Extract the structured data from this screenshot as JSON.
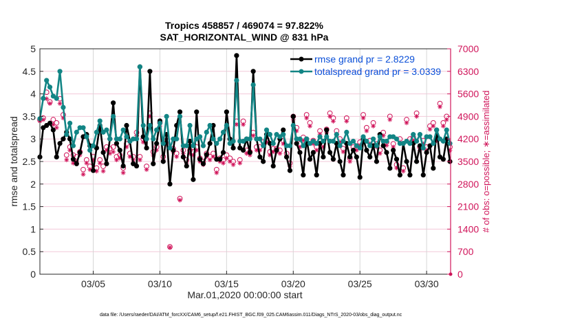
{
  "chart_data": {
    "type": "line",
    "title": "Tropics 458857 / 469074 = 97.822%",
    "subtitle": "SAT_HORIZONTAL_WIND @ 831 hPa",
    "xlabel": "Mar.01,2020 00:00:00 start",
    "ylabel": "rmse and totalspread",
    "ylabel_right": "# of obs: o=possible; ∗=assimilated",
    "footnote": "data file: /Users/raeder/DAI/ATM_forcXX/CAM6_setup/f.e21.FHIST_BGC.f09_025.CAM6assim.011/Diags_NTrS_2020-03/obs_diag_output.nc",
    "x_start_day": 1,
    "x_step_days": 0.25,
    "xlim_days": [
      1,
      31.8
    ],
    "x_ticks": [
      {
        "day": 5,
        "label": "03/05"
      },
      {
        "day": 10,
        "label": "03/10"
      },
      {
        "day": 15,
        "label": "03/15"
      },
      {
        "day": 20,
        "label": "03/20"
      },
      {
        "day": 25,
        "label": "03/25"
      },
      {
        "day": 30,
        "label": "03/30"
      }
    ],
    "ylim": [
      0,
      5
    ],
    "y_ticks": [
      "0",
      "0.5",
      "1",
      "1.5",
      "2",
      "2.5",
      "3",
      "3.5",
      "4",
      "4.5",
      "5"
    ],
    "ylim_right": [
      0,
      7000
    ],
    "y_ticks_right": [
      "0",
      "700",
      "1400",
      "2100",
      "2800",
      "3500",
      "4200",
      "4900",
      "5600",
      "6300",
      "7000"
    ],
    "grid": true,
    "legend_position": "top-right",
    "colors": {
      "rmse": "#000000",
      "totalspread": "#128585",
      "obs": "#d0145a",
      "legend_text": "#0a4fd8",
      "grid_h": "#f2c8d8",
      "grid_v": "#d6d6d6"
    },
    "series": [
      {
        "name": "rmse grand pr = 2.8229",
        "key": "rmse",
        "axis": "left",
        "values": [
          2.6,
          3.25,
          3.3,
          3.35,
          3.2,
          2.6,
          2.9,
          3.0,
          3.15,
          3.0,
          2.55,
          2.45,
          2.7,
          3.05,
          3.1,
          2.85,
          2.3,
          2.8,
          3.3,
          2.7,
          2.45,
          3.0,
          3.8,
          2.9,
          2.75,
          2.4,
          3.3,
          2.95,
          2.45,
          2.4,
          4.6,
          3.05,
          2.8,
          4.5,
          2.45,
          2.9,
          3.4,
          2.5,
          3.1,
          2.0,
          2.75,
          3.3,
          3.6,
          2.6,
          2.4,
          2.95,
          2.1,
          3.6,
          2.55,
          2.45,
          2.65,
          2.9,
          3.3,
          2.55,
          2.55,
          2.7,
          3.6,
          3.0,
          2.8,
          4.85,
          2.8,
          2.75,
          3.0,
          2.7,
          4.5,
          3.0,
          2.6,
          2.5,
          3.1,
          2.9,
          2.4,
          2.75,
          3.0,
          3.2,
          2.6,
          2.3,
          3.5,
          2.9,
          2.7,
          2.2,
          3.0,
          2.55,
          2.7,
          2.2,
          2.9,
          2.6,
          3.2,
          2.7,
          2.55,
          2.9,
          2.5,
          2.2,
          2.9,
          2.6,
          2.75,
          2.6,
          2.15,
          3.0,
          2.75,
          2.6,
          2.85,
          2.5,
          3.1,
          2.85,
          2.7,
          2.35,
          2.75,
          2.55,
          2.2,
          2.9,
          2.5,
          2.2,
          2.9,
          2.5,
          2.85,
          2.2,
          2.7,
          2.85,
          2.35,
          3.2,
          2.6,
          2.55,
          3.0,
          2.5
        ]
      },
      {
        "name": "totalspread grand pr = 3.0339",
        "key": "totalspread",
        "axis": "left",
        "values": [
          3.45,
          3.9,
          4.3,
          4.15,
          3.95,
          3.9,
          4.5,
          3.7,
          3.1,
          3.35,
          2.85,
          3.15,
          3.25,
          3.25,
          3.05,
          2.75,
          2.85,
          3.15,
          3.4,
          3.15,
          3.2,
          3.0,
          3.5,
          3.0,
          3.0,
          3.2,
          3.05,
          2.95,
          3.0,
          3.0,
          4.6,
          3.3,
          3.0,
          3.3,
          3.0,
          3.2,
          3.35,
          2.9,
          3.5,
          2.8,
          3.0,
          3.0,
          3.5,
          2.85,
          2.85,
          3.3,
          2.85,
          3.0,
          3.05,
          2.85,
          3.15,
          3.3,
          3.0,
          2.9,
          3.0,
          3.15,
          3.3,
          2.9,
          2.95,
          4.3,
          2.95,
          2.95,
          3.0,
          3.0,
          4.2,
          3.0,
          3.0,
          2.85,
          3.2,
          3.1,
          2.9,
          3.1,
          3.05,
          3.1,
          2.85,
          2.85,
          3.3,
          3.0,
          3.0,
          2.85,
          3.0,
          2.9,
          2.95,
          2.9,
          3.05,
          2.95,
          3.05,
          2.95,
          2.95,
          3.1,
          2.85,
          2.95,
          3.15,
          2.9,
          2.95,
          2.85,
          2.8,
          3.05,
          2.95,
          2.85,
          3.0,
          2.85,
          3.05,
          2.95,
          2.95,
          3.05,
          3.05,
          3.0,
          2.9,
          2.9,
          2.95,
          2.9,
          3.1,
          2.95,
          3.1,
          2.8,
          3.05,
          3.05,
          2.9,
          3.2,
          3.0,
          2.95,
          3.2,
          2.9
        ]
      },
      {
        "name": "obs possible",
        "key": "obs_possible",
        "axis": "right",
        "marker": "o",
        "values": [
          4800,
          4850,
          5650,
          5350,
          4800,
          4700,
          5450,
          4950,
          3700,
          3950,
          3700,
          3650,
          3800,
          3250,
          3550,
          3350,
          3650,
          3300,
          3550,
          3350,
          3950,
          3900,
          3950,
          3650,
          3700,
          3300,
          4050,
          3750,
          3650,
          4400,
          3650,
          4200,
          3350,
          5000,
          3800,
          3950,
          4700,
          3650,
          4150,
          850,
          3900,
          3750,
          2350,
          3850,
          3550,
          3850,
          3800,
          3950,
          3600,
          3500,
          3750,
          3650,
          3750,
          3250,
          3600,
          3550,
          3700,
          3600,
          3500,
          4750,
          3550,
          4750,
          3850,
          3800,
          4400,
          3950,
          3950,
          4100,
          4200,
          3800,
          3900,
          3900,
          3850,
          4150,
          3750,
          3450,
          4900,
          4550,
          4050,
          4250,
          4950,
          4700,
          4150,
          3950,
          4450,
          4050,
          4500,
          5000,
          4850,
          4450,
          4200,
          3900,
          4850,
          3600,
          3950,
          3950,
          4100,
          4950,
          4550,
          4150,
          4700,
          4050,
          3850,
          4400,
          4100,
          4900,
          4050,
          3400,
          4200,
          3300,
          4800,
          4200,
          4250,
          5000,
          3950,
          4150,
          3950,
          4600,
          4700,
          4250,
          5300,
          4700,
          4900,
          3950
        ]
      },
      {
        "name": "obs assimilated",
        "key": "obs_assimilated",
        "axis": "right",
        "marker": "*",
        "values": [
          4750,
          4800,
          5450,
          5300,
          4650,
          4550,
          5300,
          4850,
          3550,
          3850,
          3450,
          3500,
          3700,
          3100,
          3450,
          3250,
          3550,
          3200,
          3450,
          3200,
          3850,
          3750,
          3800,
          3550,
          3600,
          3150,
          3950,
          3650,
          3550,
          4300,
          3550,
          4100,
          3250,
          4900,
          3700,
          3850,
          4600,
          3550,
          4050,
          830,
          3800,
          3650,
          2300,
          3750,
          3450,
          3750,
          3700,
          3850,
          3500,
          3400,
          3650,
          3550,
          3650,
          3150,
          3500,
          3450,
          3600,
          3500,
          3400,
          4650,
          3450,
          4650,
          3750,
          3700,
          4300,
          3850,
          3850,
          4000,
          4100,
          3700,
          3800,
          3800,
          3750,
          4050,
          3650,
          3350,
          4800,
          4450,
          3950,
          4150,
          4850,
          4600,
          4050,
          3850,
          4350,
          3950,
          4400,
          4900,
          4750,
          4350,
          4100,
          3800,
          4750,
          3500,
          3850,
          3850,
          4000,
          4850,
          4450,
          4050,
          4600,
          3950,
          3750,
          4300,
          4000,
          4800,
          3950,
          3300,
          4100,
          3200,
          4700,
          4100,
          4150,
          4900,
          3850,
          4050,
          3850,
          4500,
          4600,
          4150,
          5200,
          4600,
          4800,
          3850
        ]
      }
    ]
  }
}
